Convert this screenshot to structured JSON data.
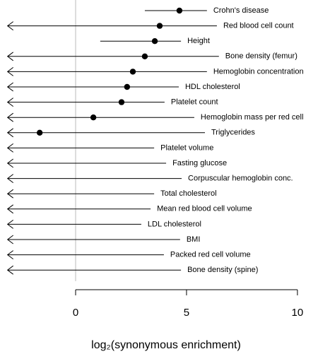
{
  "chart_data": {
    "type": "forest",
    "x_label": "log₂(synonymous enrichment)",
    "categories": [
      "Crohn's disease",
      "Red blood cell count",
      "Height",
      "Bone density (femur)",
      "Hemoglobin concentration",
      "HDL cholesterol",
      "Platelet count",
      "Hemoglobin mass per red cell",
      "Triglycerides",
      "Platelet volume",
      "Fasting glucose",
      "Corpuscular hemoglobin conc.",
      "Total cholesterol",
      "Mean red blood cell volume",
      "LDL cholesterol",
      "BMI",
      "Packed red cell volume",
      "Bone density (spine)"
    ],
    "values": [
      4.68,
      3.79,
      3.57,
      3.12,
      2.58,
      2.32,
      2.07,
      0.8,
      -1.62,
      null,
      null,
      null,
      null,
      null,
      null,
      null,
      null,
      null
    ],
    "lower": [
      3.12,
      null,
      1.11,
      null,
      null,
      null,
      null,
      null,
      null,
      null,
      null,
      null,
      null,
      null,
      null,
      null,
      null,
      null
    ],
    "upper": [
      5.92,
      6.37,
      4.75,
      6.46,
      5.92,
      4.65,
      4.01,
      5.35,
      5.83,
      3.54,
      4.08,
      4.78,
      3.54,
      3.38,
      2.96,
      4.71,
      3.98,
      4.75
    ],
    "xlim": [
      -3.1,
      10.8
    ],
    "xticks": [
      0,
      5,
      10
    ],
    "color": "#000000"
  }
}
